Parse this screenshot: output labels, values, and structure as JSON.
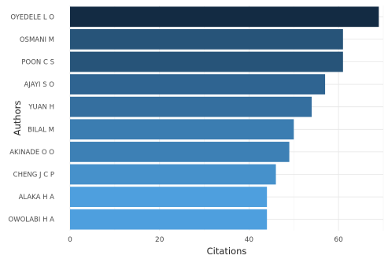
{
  "chart_data": {
    "type": "bar",
    "orientation": "horizontal",
    "categories": [
      "OYEDELE L O",
      "OSMANI M",
      "POON C S",
      "AJAYI S O",
      "YUAN H",
      "BILAL M",
      "AKINADE O O",
      "CHENG J C P",
      "ALAKA H A",
      "OWOLABI H A"
    ],
    "values": [
      69,
      61,
      61,
      57,
      54,
      50,
      49,
      46,
      44,
      44
    ],
    "colors": [
      "#132b43",
      "#275479",
      "#275479",
      "#2f6491",
      "#356f9f",
      "#3b7db1",
      "#3d80b5",
      "#4691cb",
      "#4e9fde",
      "#4e9fde"
    ],
    "xlabel": "Citations",
    "ylabel": "Authors",
    "xlim": [
      0,
      70
    ],
    "xticks": [
      0,
      20,
      40,
      60
    ],
    "grid": true,
    "legend": "none"
  }
}
